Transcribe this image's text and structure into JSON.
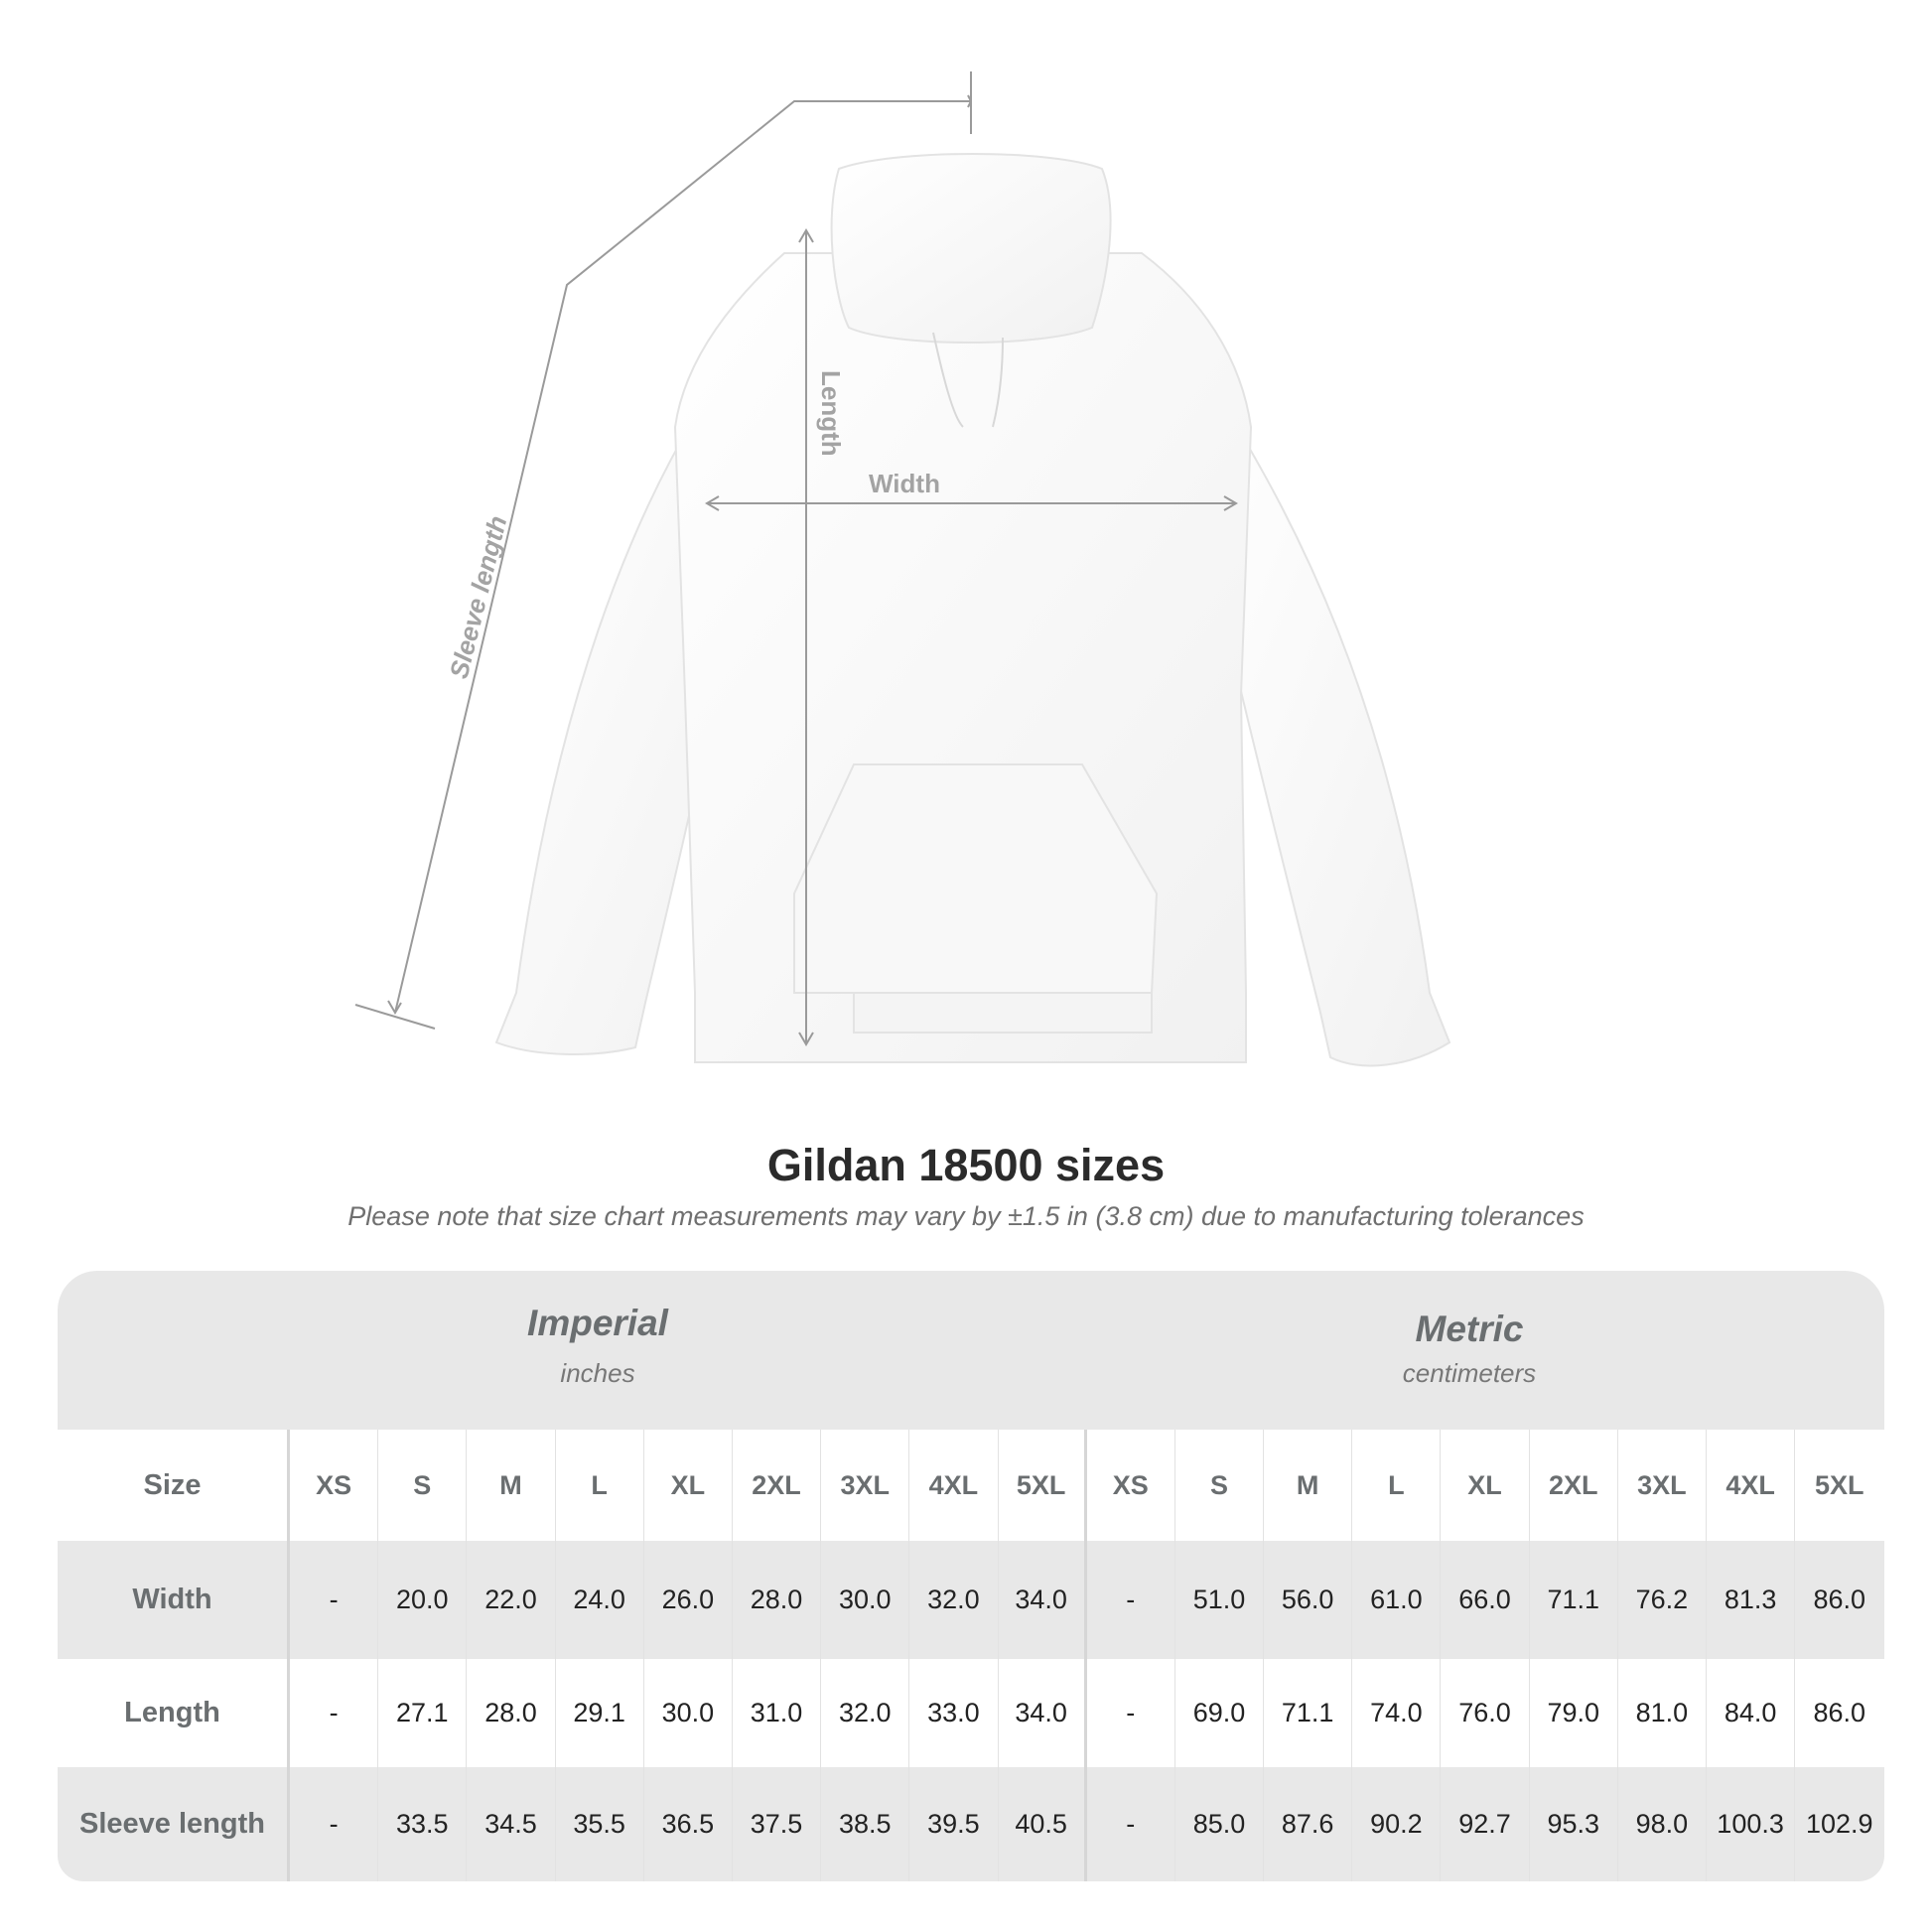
{
  "diagram": {
    "labels": {
      "sleeve": "Sleeve length",
      "length": "Length",
      "width": "Width"
    }
  },
  "title": "Gildan 18500 sizes",
  "subtitle": "Please note that size chart measurements may vary by ±1.5 in (3.8 cm) due to manufacturing tolerances",
  "table": {
    "imperial": {
      "name": "Imperial",
      "unit": "inches"
    },
    "metric": {
      "name": "Metric",
      "unit": "centimeters"
    },
    "size_label": "Size",
    "sizes": [
      "XS",
      "S",
      "M",
      "L",
      "XL",
      "2XL",
      "3XL",
      "4XL",
      "5XL"
    ],
    "rows": [
      {
        "label": "Width",
        "imperial": [
          "-",
          "20.0",
          "22.0",
          "24.0",
          "26.0",
          "28.0",
          "30.0",
          "32.0",
          "34.0"
        ],
        "metric": [
          "-",
          "51.0",
          "56.0",
          "61.0",
          "66.0",
          "71.1",
          "76.2",
          "81.3",
          "86.0"
        ]
      },
      {
        "label": "Length",
        "imperial": [
          "-",
          "27.1",
          "28.0",
          "29.1",
          "30.0",
          "31.0",
          "32.0",
          "33.0",
          "34.0"
        ],
        "metric": [
          "-",
          "69.0",
          "71.1",
          "74.0",
          "76.0",
          "79.0",
          "81.0",
          "84.0",
          "86.0"
        ]
      },
      {
        "label": "Sleeve length",
        "imperial": [
          "-",
          "33.5",
          "34.5",
          "35.5",
          "36.5",
          "37.5",
          "38.5",
          "39.5",
          "40.5"
        ],
        "metric": [
          "-",
          "85.0",
          "87.6",
          "90.2",
          "92.7",
          "95.3",
          "98.0",
          "100.3",
          "102.9"
        ]
      }
    ]
  }
}
